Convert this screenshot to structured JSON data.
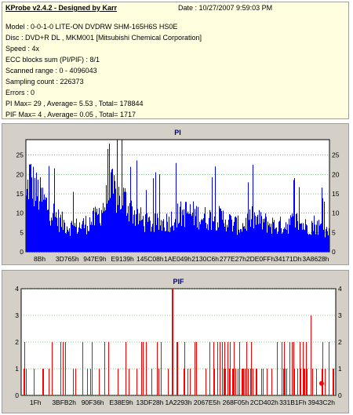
{
  "info": {
    "title": "KProbe v2.4.2 - Designed by Karr",
    "date": "Date : 10/27/2007 9:59:03 PM",
    "lines": [
      "Model : 0-0-1-0 LITE-ON DVDRW SHM-165H6S HS0E",
      "Disc : DVD+R DL , MKM001 [Mitsubishi Chemical Corporation]",
      "Speed : 4x",
      "ECC blocks sum (PI/PIF) : 8/1",
      "Scanned range : 0 - 4096043",
      "Sampling count : 226373",
      "Errors : 0",
      "PI Max= 29 , Average= 5.53 , Total= 178844",
      "PIF Max= 4 , Average= 0.05 , Total= 1717"
    ]
  },
  "chart_data": [
    {
      "type": "bar",
      "title": "PI",
      "color": "#0000ff",
      "ylim": [
        0,
        29
      ],
      "yticks": [
        0,
        5,
        10,
        15,
        20,
        25
      ],
      "xtick_labels": [
        "8Bh",
        "3D765h",
        "947E9h",
        "E9139h",
        "145C08h",
        "1AE049h",
        "2130C6h",
        "277E27h",
        "2DE0FFh",
        "34171Dh",
        "3A8628h"
      ],
      "envelope": [
        [
          0.0,
          18
        ],
        [
          0.01,
          27
        ],
        [
          0.03,
          22
        ],
        [
          0.05,
          19
        ],
        [
          0.08,
          15
        ],
        [
          0.11,
          11
        ],
        [
          0.14,
          9
        ],
        [
          0.17,
          9
        ],
        [
          0.2,
          10
        ],
        [
          0.23,
          12
        ],
        [
          0.26,
          17
        ],
        [
          0.28,
          22
        ],
        [
          0.3,
          20
        ],
        [
          0.32,
          19
        ],
        [
          0.34,
          16
        ],
        [
          0.36,
          13
        ],
        [
          0.4,
          10
        ],
        [
          0.44,
          10
        ],
        [
          0.47,
          11
        ],
        [
          0.5,
          13
        ],
        [
          0.53,
          14
        ],
        [
          0.56,
          13
        ],
        [
          0.59,
          12
        ],
        [
          0.62,
          12
        ],
        [
          0.65,
          12
        ],
        [
          0.68,
          10
        ],
        [
          0.71,
          9
        ],
        [
          0.74,
          12
        ],
        [
          0.77,
          11
        ],
        [
          0.8,
          10
        ],
        [
          0.83,
          9
        ],
        [
          0.86,
          10
        ],
        [
          0.89,
          11
        ],
        [
          0.92,
          9
        ],
        [
          0.95,
          10
        ],
        [
          0.98,
          8
        ],
        [
          1.0,
          7
        ]
      ],
      "max": 29
    },
    {
      "type": "bar",
      "title": "PIF",
      "color": "#ff0000",
      "ylim": [
        0,
        4
      ],
      "yticks": [
        0,
        1,
        2,
        3,
        4
      ],
      "xtick_labels": [
        "1Fh",
        "3BFB2h",
        "90F36h",
        "E38E9h",
        "13DF28h",
        "1A2293h",
        "2067E5h",
        "268F05h",
        "2CD402h",
        "331B1Fh",
        "3943C2h"
      ],
      "max": 4
    }
  ]
}
